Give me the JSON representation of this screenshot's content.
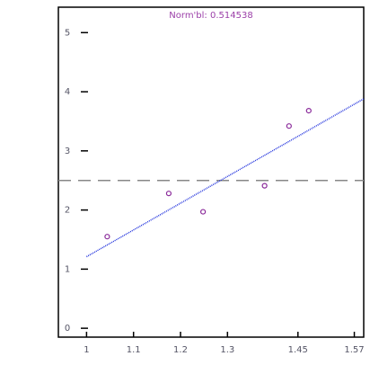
{
  "chart_data": {
    "type": "scatter",
    "title": "Norm'bl: 0.514538",
    "title_color": "#9b3fa8",
    "x": [
      1.044,
      1.175,
      1.248,
      1.379,
      1.431,
      1.473
    ],
    "series": [
      {
        "color": "#8a2a9a",
        "values": [
          1.55,
          2.28,
          1.97,
          2.41,
          3.42,
          3.68
        ]
      }
    ],
    "fit": {
      "color": "#2233dd",
      "x": [
        1.0,
        1.59
      ],
      "values": [
        1.21,
        3.88
      ]
    },
    "hline": {
      "value": 2.5,
      "color": "#888888"
    },
    "xlim": [
      0.94,
      1.59
    ],
    "xticks": [
      1.0,
      1.1,
      1.2,
      1.3,
      1.45,
      1.57
    ],
    "ylim": [
      -0.15,
      5.43
    ],
    "yticks": [
      0,
      1,
      2,
      3,
      4,
      5
    ]
  }
}
